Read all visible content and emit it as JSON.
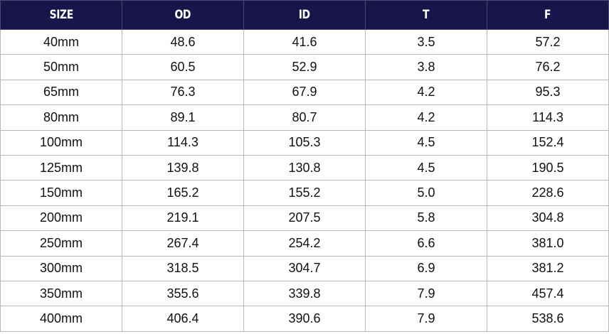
{
  "table": {
    "headers": [
      "SIZE",
      "OD",
      "ID",
      "T",
      "F"
    ],
    "rows": [
      [
        "40mm",
        "48.6",
        "41.6",
        "3.5",
        "57.2"
      ],
      [
        "50mm",
        "60.5",
        "52.9",
        "3.8",
        "76.2"
      ],
      [
        "65mm",
        "76.3",
        "67.9",
        "4.2",
        "95.3"
      ],
      [
        "80mm",
        "89.1",
        "80.7",
        "4.2",
        "114.3"
      ],
      [
        "100mm",
        "114.3",
        "105.3",
        "4.5",
        "152.4"
      ],
      [
        "125mm",
        "139.8",
        "130.8",
        "4.5",
        "190.5"
      ],
      [
        "150mm",
        "165.2",
        "155.2",
        "5.0",
        "228.6"
      ],
      [
        "200mm",
        "219.1",
        "207.5",
        "5.8",
        "304.8"
      ],
      [
        "250mm",
        "267.4",
        "254.2",
        "6.6",
        "381.0"
      ],
      [
        "300mm",
        "318.5",
        "304.7",
        "6.9",
        "381.2"
      ],
      [
        "350mm",
        "355.6",
        "339.8",
        "7.9",
        "457.4"
      ],
      [
        "400mm",
        "406.4",
        "390.6",
        "7.9",
        "538.6"
      ]
    ]
  },
  "colors": {
    "header_background": "#17154a",
    "header_text": "#ffffff",
    "cell_text": "#111111",
    "grid_lines": "#b9b9b9"
  }
}
